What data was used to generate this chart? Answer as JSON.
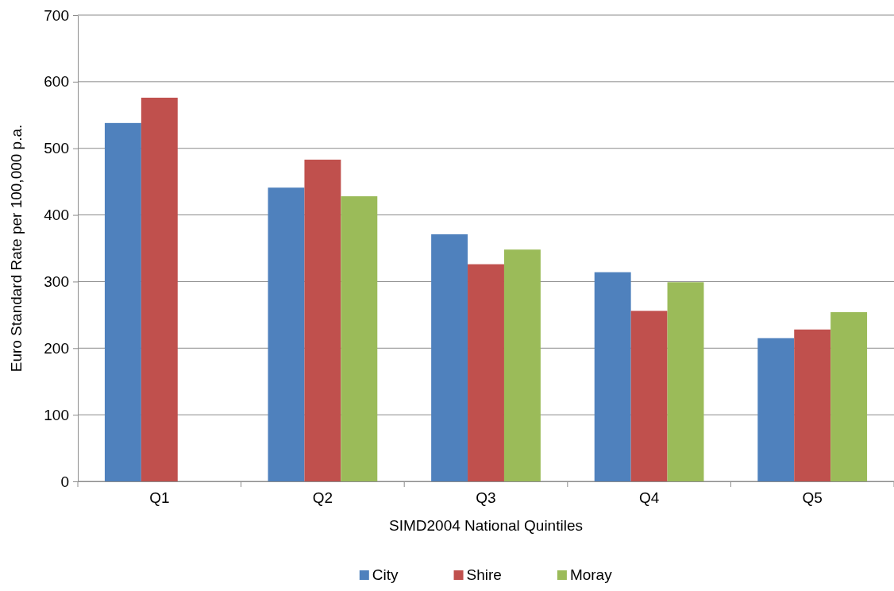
{
  "chart_data": {
    "type": "bar",
    "xlabel": "SIMD2004 National Quintiles",
    "ylabel": "Euro Standard Rate per 100,000 p.a.",
    "categories": [
      "Q1",
      "Q2",
      "Q3",
      "Q4",
      "Q5"
    ],
    "series": [
      {
        "name": "City",
        "color": "#4f81bd",
        "values": [
          538,
          441,
          371,
          314,
          215
        ]
      },
      {
        "name": "Shire",
        "color": "#c0504d",
        "values": [
          576,
          483,
          326,
          256,
          228
        ]
      },
      {
        "name": "Moray",
        "color": "#9bbb59",
        "values": [
          null,
          428,
          348,
          299,
          254
        ]
      }
    ],
    "ylim": [
      0,
      700
    ],
    "yticks": [
      0,
      100,
      200,
      300,
      400,
      500,
      600,
      700
    ],
    "grid": "y",
    "legend": "bottom"
  }
}
